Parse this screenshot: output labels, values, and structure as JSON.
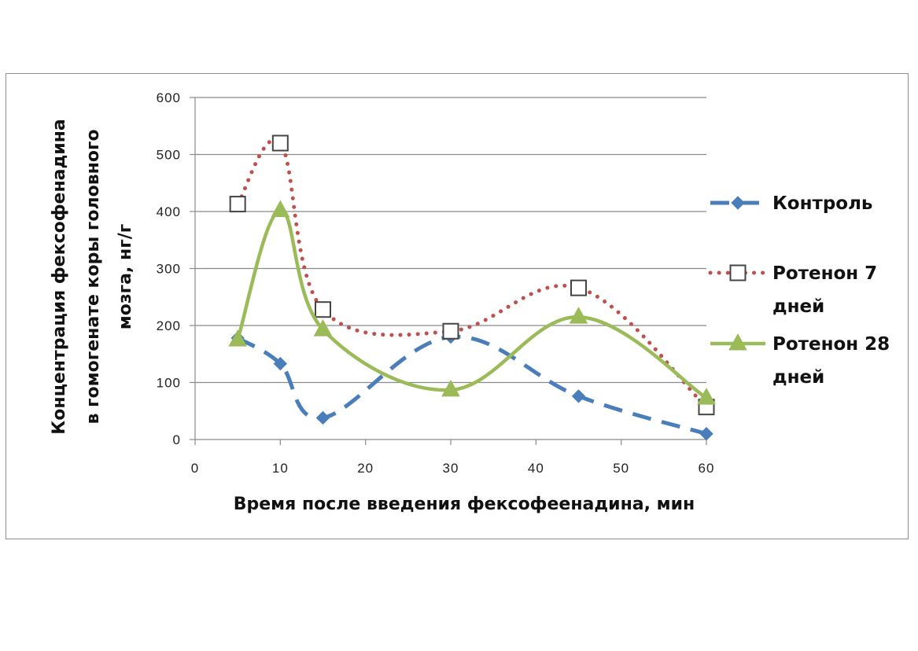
{
  "chart_data": {
    "type": "line",
    "title": "",
    "xlabel": "Время после введения фексофеенадина, мин",
    "ylabel_lines": [
      "Концентрация фексофенадина",
      "в гомогенате коры головного",
      "мозга, нг/г"
    ],
    "xlim": [
      0,
      60
    ],
    "ylim": [
      0,
      600
    ],
    "xticks": [
      0,
      10,
      20,
      30,
      40,
      50,
      60
    ],
    "yticks": [
      0,
      100,
      200,
      300,
      400,
      500,
      600
    ],
    "grid": "horizontal",
    "legend_position": "right",
    "series": [
      {
        "name": "Контроль",
        "name_lines": [
          "Контроль"
        ],
        "color": "#4a7ebb",
        "marker": "diamond",
        "line_style": "dashed",
        "x": [
          5,
          10,
          15,
          30,
          45,
          60
        ],
        "y": [
          178,
          133,
          38,
          180,
          76,
          10
        ]
      },
      {
        "name": "Ротенон 7 дней",
        "name_lines": [
          "Ротенон 7",
          "дней"
        ],
        "color": "#c0504d",
        "marker": "square-open",
        "line_style": "dotted",
        "x": [
          5,
          10,
          15,
          30,
          45,
          60
        ],
        "y": [
          413,
          520,
          228,
          190,
          266,
          57
        ]
      },
      {
        "name": "Ротенон 28 дней",
        "name_lines": [
          "Ротенон 28",
          "дней"
        ],
        "color": "#9bbb59",
        "marker": "triangle",
        "line_style": "solid",
        "x": [
          5,
          10,
          15,
          30,
          45,
          60
        ],
        "y": [
          175,
          402,
          193,
          87,
          215,
          73
        ]
      }
    ]
  }
}
